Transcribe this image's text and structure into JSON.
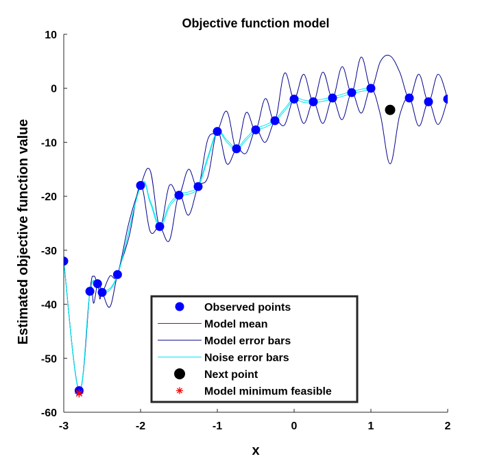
{
  "chart_data": {
    "type": "scatter",
    "title": "Objective function model",
    "xlabel": "x",
    "ylabel": "Estimated objective function value",
    "xlim": [
      -3,
      2
    ],
    "ylim": [
      -60,
      10
    ],
    "xticks": [
      -3,
      -2,
      -1,
      0,
      1,
      2
    ],
    "yticks": [
      10,
      0,
      -10,
      -20,
      -30,
      -40,
      -50,
      -60
    ],
    "grid": false,
    "legend_position": "bottom-center",
    "series": [
      {
        "name": "Observed points",
        "kind": "markers",
        "color": "#0000ff",
        "x": [
          -3.0,
          -2.8,
          -2.66,
          -2.56,
          -2.5,
          -2.3,
          -2.0,
          -1.75,
          -1.5,
          -1.25,
          -1.0,
          -0.75,
          -0.5,
          -0.25,
          0.0,
          0.25,
          0.5,
          0.75,
          1.0,
          1.5,
          1.75,
          2.0
        ],
        "y": [
          -32.0,
          -56.0,
          -37.6,
          -36.2,
          -37.8,
          -34.5,
          -18.0,
          -25.6,
          -19.8,
          -18.2,
          -8.0,
          -11.2,
          -7.7,
          -6.0,
          -2.0,
          -2.5,
          -1.8,
          -0.8,
          0.0,
          -1.8,
          -2.5,
          -2.0
        ]
      },
      {
        "name": "Model mean",
        "kind": "line",
        "color": "#cc0000"
      },
      {
        "name": "Model error bars",
        "kind": "band-lines",
        "color": "#00008b",
        "x": [
          -3.0,
          -2.8,
          -2.66,
          -2.61,
          -2.56,
          -2.53,
          -2.5,
          -2.4,
          -2.3,
          -2.15,
          -2.0,
          -1.875,
          -1.75,
          -1.625,
          -1.5,
          -1.375,
          -1.25,
          -1.125,
          -1.0,
          -0.875,
          -0.75,
          -0.625,
          -0.5,
          -0.375,
          -0.25,
          -0.125,
          0.0,
          0.125,
          0.25,
          0.375,
          0.5,
          0.625,
          0.75,
          0.875,
          1.0,
          1.125,
          1.25,
          1.375,
          1.5,
          1.625,
          1.75,
          1.875,
          2.0
        ],
        "upper": [
          -32.0,
          -56.0,
          -37.6,
          -34.8,
          -36.2,
          -35.8,
          -37.8,
          -34.8,
          -34.5,
          -24.8,
          -18.0,
          -15.2,
          -25.6,
          -18.0,
          -19.8,
          -15.0,
          -18.2,
          -9.5,
          -8.0,
          -4.3,
          -11.2,
          -4.5,
          -7.7,
          -1.9,
          -6.0,
          2.8,
          -2.0,
          2.6,
          -2.5,
          3.0,
          -1.8,
          4.0,
          -0.8,
          5.8,
          0.0,
          5.0,
          6.0,
          3.0,
          -1.8,
          2.6,
          -2.5,
          2.6,
          -2.0
        ],
        "lower": [
          -32.0,
          -56.0,
          -37.6,
          -39.8,
          -36.2,
          -39.0,
          -37.8,
          -40.5,
          -34.5,
          -27.5,
          -18.0,
          -26.5,
          -25.6,
          -28.2,
          -19.8,
          -23.5,
          -18.2,
          -16.5,
          -8.0,
          -14.0,
          -11.2,
          -12.0,
          -7.7,
          -10.0,
          -6.0,
          -6.8,
          -2.0,
          -6.5,
          -2.5,
          -6.5,
          -1.8,
          -5.8,
          -0.8,
          -4.6,
          0.0,
          -5.0,
          -14.0,
          -5.0,
          -1.8,
          -7.0,
          -2.5,
          -6.7,
          -2.0
        ]
      },
      {
        "name": "Noise error bars",
        "kind": "band-lines",
        "color": "#00e5ee",
        "x": [
          -3.0,
          -2.8,
          -2.66,
          -2.56,
          -2.5,
          -2.3,
          -2.0,
          -1.875,
          -1.75,
          -1.625,
          -1.5,
          -1.375,
          -1.25,
          -1.125,
          -1.0,
          -0.875,
          -0.75,
          -0.625,
          -0.5,
          -0.375,
          -0.25,
          -0.125,
          0.0,
          0.125,
          0.25,
          0.5,
          0.75,
          1.0
        ],
        "upper": [
          -32.0,
          -56.0,
          -37.6,
          -36.2,
          -37.6,
          -34.5,
          -18.0,
          -20.8,
          -25.3,
          -21.5,
          -19.6,
          -19.2,
          -18.0,
          -12.7,
          -8.0,
          -9.6,
          -11.0,
          -9.2,
          -7.5,
          -6.8,
          -5.8,
          -3.8,
          -1.8,
          -2.2,
          -2.3,
          -1.6,
          -0.6,
          0.2
        ],
        "lower": [
          -32.2,
          -56.2,
          -37.8,
          -36.4,
          -38.0,
          -34.7,
          -18.2,
          -21.2,
          -25.9,
          -22.0,
          -20.0,
          -19.6,
          -18.4,
          -13.2,
          -8.2,
          -10.0,
          -11.4,
          -9.6,
          -7.9,
          -7.2,
          -6.2,
          -4.2,
          -2.2,
          -2.6,
          -2.7,
          -2.0,
          -1.0,
          -0.2
        ]
      },
      {
        "name": "Next point",
        "kind": "marker",
        "color": "#000000",
        "x": [
          1.25
        ],
        "y": [
          -4.0
        ]
      },
      {
        "name": "Model minimum feasible",
        "kind": "star",
        "color": "#ff0000",
        "x": [
          -2.8
        ],
        "y": [
          -56.5
        ]
      }
    ]
  }
}
